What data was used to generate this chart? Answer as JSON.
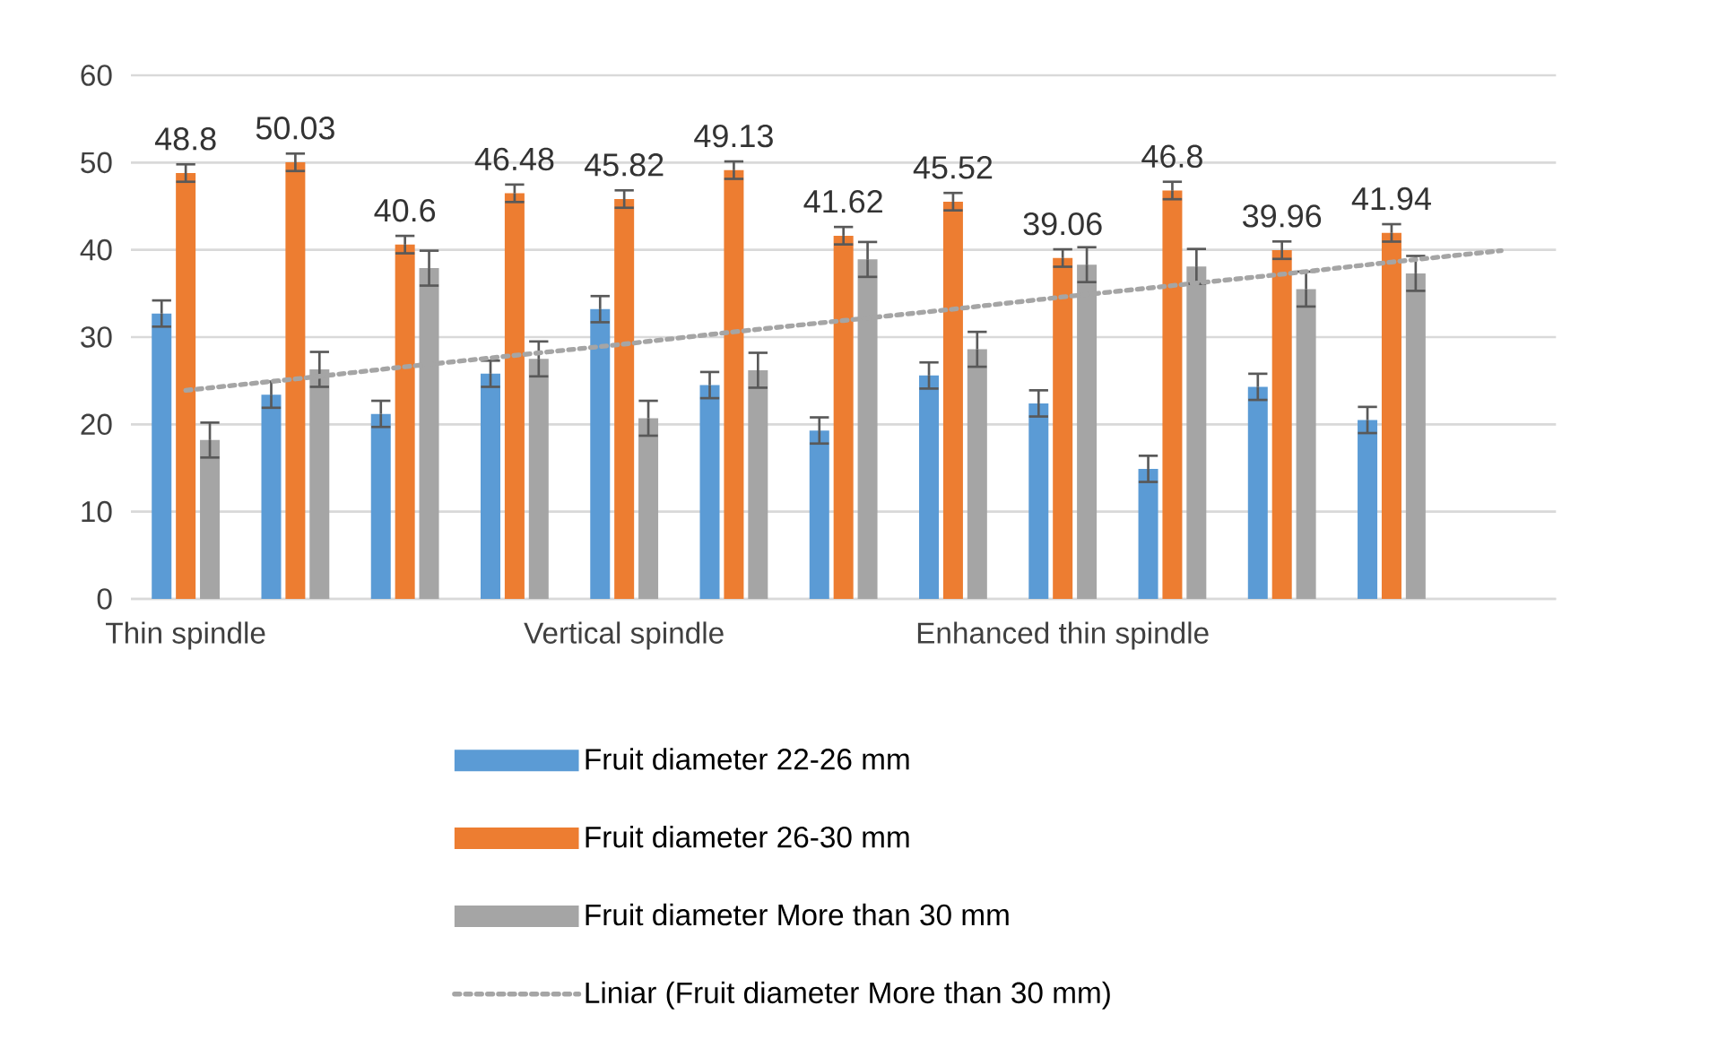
{
  "chart_data": {
    "type": "bar",
    "categories": [
      "Thin spindle",
      null,
      null,
      null,
      "Vertical spindle",
      null,
      null,
      null,
      "Enhanced thin spindle",
      null,
      null,
      null,
      null
    ],
    "series": [
      {
        "name": "Fruit diameter 22-26 mm",
        "color": "#5b9bd5",
        "values": [
          32.7,
          23.4,
          21.2,
          25.8,
          33.2,
          24.5,
          19.3,
          25.6,
          22.4,
          14.9,
          24.3,
          20.5,
          null
        ],
        "errors": [
          1.5,
          1.5,
          1.5,
          1.5,
          1.5,
          1.5,
          1.5,
          1.5,
          1.5,
          1.5,
          1.5,
          1.5,
          null
        ]
      },
      {
        "name": "Fruit diameter 26-30 mm",
        "color": "#ed7d31",
        "values": [
          48.8,
          50.03,
          40.6,
          46.48,
          45.82,
          49.13,
          41.62,
          45.52,
          39.06,
          46.8,
          39.96,
          41.94,
          null
        ],
        "errors": [
          1.0,
          1.0,
          1.0,
          1.0,
          1.0,
          1.0,
          1.0,
          1.0,
          1.0,
          1.0,
          1.0,
          1.0,
          null
        ],
        "value_labels": [
          "48.8",
          "50.03",
          "40.6",
          "46.48",
          "45.82",
          "49.13",
          "41.62",
          "45.52",
          "39.06",
          "46.8",
          "39.96",
          "41.94",
          null
        ]
      },
      {
        "name": "Fruit diameter More than 30 mm",
        "color": "#a5a5a5",
        "values": [
          18.2,
          26.3,
          37.9,
          27.5,
          20.7,
          26.2,
          38.9,
          28.6,
          38.3,
          38.1,
          35.5,
          37.3,
          null
        ],
        "errors": [
          2.0,
          2.0,
          2.0,
          2.0,
          2.0,
          2.0,
          2.0,
          2.0,
          2.0,
          2.0,
          2.0,
          2.0,
          null
        ]
      },
      {
        "name": "Liniar (Fruit diameter More than 30 mm)",
        "type": "line",
        "color": "#a5a5a5",
        "line_style": "dotted",
        "values": [
          23.9,
          25.2,
          26.6,
          27.9,
          29.2,
          30.6,
          31.9,
          33.2,
          34.6,
          35.9,
          37.2,
          38.6,
          39.9
        ]
      }
    ],
    "ylim": [
      0,
      60
    ],
    "yticks": [
      0,
      10,
      20,
      30,
      40,
      50,
      60
    ],
    "grid": "y",
    "legend": "bottom"
  }
}
